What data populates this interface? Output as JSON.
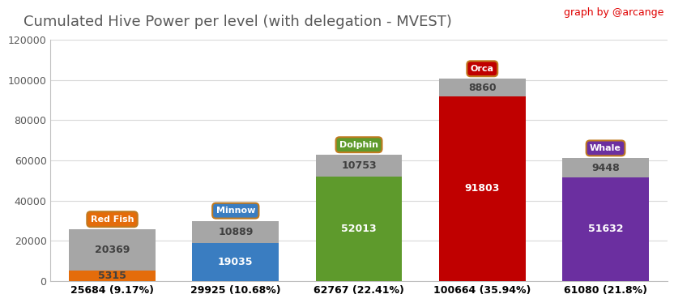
{
  "chart_data": {
    "type": "bar",
    "title": "Cumulated Hive Power per level (with delegation - MVEST)",
    "annotations": {
      "credit": "graph by @arcange",
      "levels": [
        "Red Fish",
        "Minnow",
        "Dolphin",
        "Orca",
        "Whale"
      ]
    },
    "categories": [
      "25684 (9.17%)",
      "29925 (10.68%)",
      "62767 (22.41%)",
      "100664 (35.94%)",
      "61080 (21.8%)"
    ],
    "stacked": true,
    "data_labels": true,
    "grid": true,
    "series": [
      {
        "colors": [
          "#e46c0a",
          "#3a7dc1",
          "#5e9a2c",
          "#c00000",
          "#6b2fa0"
        ],
        "values": [
          5315,
          19035,
          52013,
          91803,
          51632
        ]
      },
      {
        "color": "#a6a6a6",
        "values": [
          20369,
          10889,
          10753,
          8860,
          9448
        ]
      }
    ],
    "ylim": [
      0,
      120000
    ],
    "yticks": [
      0,
      20000,
      40000,
      60000,
      80000,
      100000,
      120000
    ]
  }
}
